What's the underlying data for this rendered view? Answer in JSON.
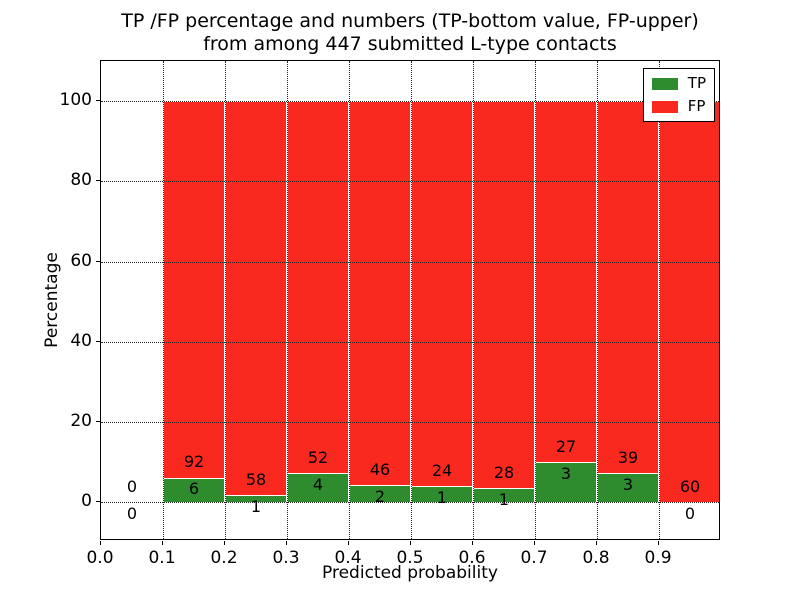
{
  "title": {
    "line1": "TP /FP percentage and numbers (TP-bottom value, FP-upper)",
    "line2": "from among 447 submitted L-type contacts"
  },
  "chart_data": {
    "type": "bar",
    "stacked": true,
    "normalized_to_percent": true,
    "title": "TP /FP percentage and numbers (TP-bottom value, FP-upper) from among 447 submitted L-type contacts",
    "xlabel": "Predicted probability",
    "ylabel": "Percentage",
    "xlim": [
      0.0,
      1.0
    ],
    "ylim": [
      -9.7,
      110.0
    ],
    "x_ticks": [
      0.0,
      0.1,
      0.2,
      0.3,
      0.4,
      0.5,
      0.6,
      0.7,
      0.8,
      0.9
    ],
    "y_ticks": [
      0,
      20,
      40,
      60,
      80,
      100
    ],
    "grid": true,
    "grid_style": "dotted",
    "legend_position": "upper right",
    "total_submitted": 447,
    "colors": {
      "tp": "#2e8b2e",
      "fp": "#f92920"
    },
    "legend": [
      {
        "name": "TP",
        "color": "#2e8b2e"
      },
      {
        "name": "FP",
        "color": "#f92920"
      }
    ],
    "bins": [
      {
        "x0": 0.0,
        "x1": 0.1,
        "tp": 0,
        "fp": 0,
        "has_bar": false
      },
      {
        "x0": 0.1,
        "x1": 0.2,
        "tp": 6,
        "fp": 92,
        "has_bar": true
      },
      {
        "x0": 0.2,
        "x1": 0.3,
        "tp": 1,
        "fp": 58,
        "has_bar": true
      },
      {
        "x0": 0.3,
        "x1": 0.4,
        "tp": 4,
        "fp": 52,
        "has_bar": true
      },
      {
        "x0": 0.4,
        "x1": 0.5,
        "tp": 2,
        "fp": 46,
        "has_bar": true
      },
      {
        "x0": 0.5,
        "x1": 0.6,
        "tp": 1,
        "fp": 24,
        "has_bar": true
      },
      {
        "x0": 0.6,
        "x1": 0.7,
        "tp": 1,
        "fp": 28,
        "has_bar": true
      },
      {
        "x0": 0.7,
        "x1": 0.8,
        "tp": 3,
        "fp": 27,
        "has_bar": true
      },
      {
        "x0": 0.8,
        "x1": 0.9,
        "tp": 3,
        "fp": 39,
        "has_bar": true
      },
      {
        "x0": 0.9,
        "x1": 1.0,
        "tp": 0,
        "fp": 60,
        "has_bar": true
      }
    ]
  }
}
